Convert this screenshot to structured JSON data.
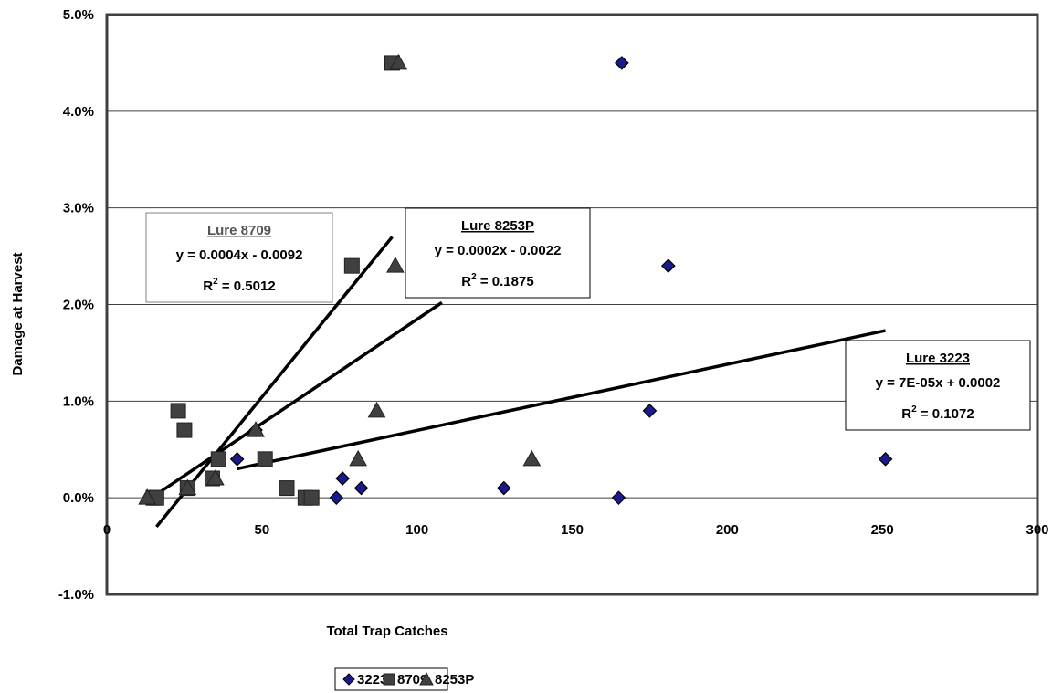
{
  "chart_data": {
    "type": "scatter",
    "xlabel": "Total Trap Catches",
    "ylabel": "Damage at Harvest",
    "xlim": [
      0,
      300
    ],
    "ylim": [
      -0.01,
      0.05
    ],
    "x_ticks": [
      {
        "value": 0,
        "label": "0"
      },
      {
        "value": 50,
        "label": "50"
      },
      {
        "value": 100,
        "label": "100"
      },
      {
        "value": 150,
        "label": "150"
      },
      {
        "value": 200,
        "label": "200"
      },
      {
        "value": 250,
        "label": "250"
      },
      {
        "value": 300,
        "label": "300"
      }
    ],
    "y_ticks": [
      {
        "value": -0.01,
        "label": "-1.0%"
      },
      {
        "value": 0.0,
        "label": "0.0%"
      },
      {
        "value": 0.01,
        "label": "1.0%"
      },
      {
        "value": 0.02,
        "label": "2.0%"
      },
      {
        "value": 0.03,
        "label": "3.0%"
      },
      {
        "value": 0.04,
        "label": "4.0%"
      },
      {
        "value": 0.05,
        "label": "5.0%"
      }
    ],
    "grid": "horizontal",
    "legend_position": "bottom",
    "series": [
      {
        "name": "3223",
        "marker": "diamond",
        "color": "#1a1a8c",
        "points": [
          [
            42,
            0.004
          ],
          [
            48,
            0.007
          ],
          [
            74,
            0.0
          ],
          [
            76,
            0.002
          ],
          [
            82,
            0.001
          ],
          [
            128,
            0.001
          ],
          [
            165,
            0.0
          ],
          [
            166,
            0.045
          ],
          [
            175,
            0.009
          ],
          [
            181,
            0.024
          ],
          [
            251,
            0.004
          ]
        ]
      },
      {
        "name": "8709",
        "marker": "square",
        "color": "#404040",
        "points": [
          [
            15,
            0.0
          ],
          [
            16,
            0.0
          ],
          [
            23,
            0.009
          ],
          [
            25,
            0.007
          ],
          [
            26,
            0.001
          ],
          [
            34,
            0.002
          ],
          [
            36,
            0.004
          ],
          [
            51,
            0.004
          ],
          [
            58,
            0.001
          ],
          [
            64,
            0.0
          ],
          [
            66,
            0.0
          ],
          [
            79,
            0.024
          ],
          [
            92,
            0.045
          ]
        ]
      },
      {
        "name": "8253P",
        "marker": "triangle",
        "color": "#404040",
        "points": [
          [
            13,
            0.0
          ],
          [
            26,
            0.001
          ],
          [
            35,
            0.002
          ],
          [
            48,
            0.007
          ],
          [
            81,
            0.004
          ],
          [
            87,
            0.009
          ],
          [
            93,
            0.024
          ],
          [
            94,
            0.045
          ],
          [
            137,
            0.004
          ]
        ]
      }
    ],
    "trendlines": [
      {
        "series": "8709",
        "x": [
          16,
          92
        ],
        "y": [
          -0.003,
          0.027
        ]
      },
      {
        "series": "8253P",
        "x": [
          13,
          108
        ],
        "y": [
          -0.0003,
          0.0202
        ]
      },
      {
        "series": "3223",
        "x": [
          42,
          251
        ],
        "y": [
          0.003,
          0.0173
        ]
      }
    ],
    "annotations": [
      {
        "title": "Lure 8709",
        "equation": "y = 0.0004x - 0.0092",
        "r_label": "R",
        "r_sup": "2",
        "r_value": " = 0.5012"
      },
      {
        "title": "Lure 8253P",
        "equation": "y = 0.0002x - 0.0022",
        "r_label": "R",
        "r_sup": "2",
        "r_value": " = 0.1875"
      },
      {
        "title": "Lure 3223",
        "equation": "y = 7E-05x + 0.0002",
        "r_label": "R",
        "r_sup": "2",
        "r_value": " = 0.1072"
      }
    ]
  }
}
